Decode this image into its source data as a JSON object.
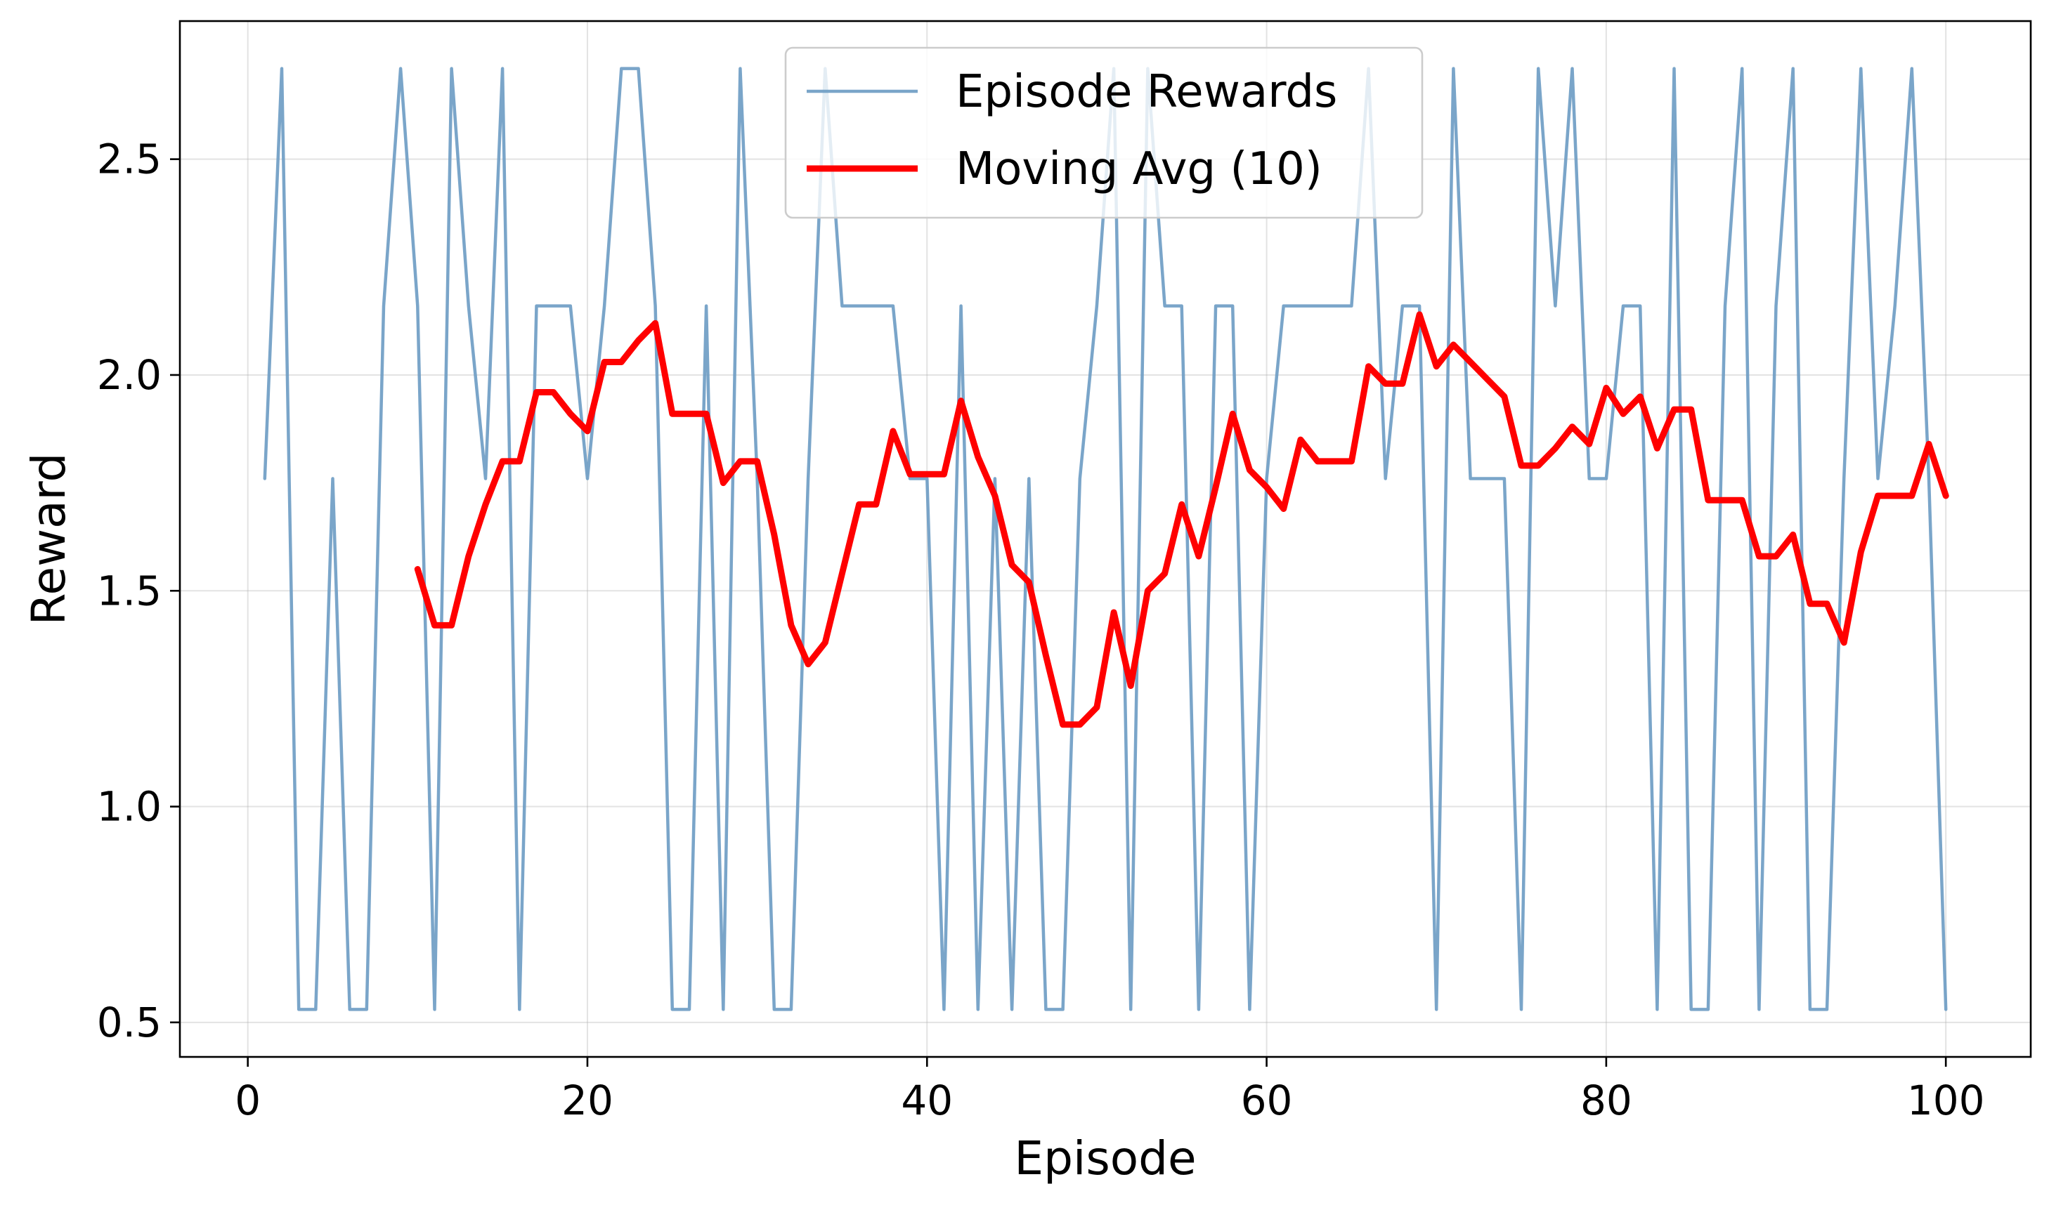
{
  "chart_data": {
    "type": "line",
    "xlabel": "Episode",
    "ylabel": "Reward",
    "xlim": [
      -4,
      105
    ],
    "ylim": [
      0.42,
      2.82
    ],
    "xticks": [
      0,
      20,
      40,
      60,
      80,
      100
    ],
    "yticks": [
      0.5,
      1.0,
      1.5,
      2.0,
      2.5
    ],
    "xtick_labels": [
      "0",
      "20",
      "40",
      "60",
      "80",
      "100"
    ],
    "ytick_labels": [
      "0.5",
      "1.0",
      "1.5",
      "2.0",
      "2.5"
    ],
    "grid": true,
    "legend_position": "top-center",
    "series": [
      {
        "name": "Episode Rewards",
        "color": "#6b9bc3",
        "x": [
          1,
          2,
          3,
          4,
          5,
          6,
          7,
          8,
          9,
          10,
          11,
          12,
          13,
          14,
          15,
          16,
          17,
          18,
          19,
          20,
          21,
          22,
          23,
          24,
          25,
          26,
          27,
          28,
          29,
          30,
          31,
          32,
          33,
          34,
          35,
          36,
          37,
          38,
          39,
          40,
          41,
          42,
          43,
          44,
          45,
          46,
          47,
          48,
          49,
          50,
          51,
          52,
          53,
          54,
          55,
          56,
          57,
          58,
          59,
          60,
          61,
          62,
          63,
          64,
          65,
          66,
          67,
          68,
          69,
          70,
          71,
          72,
          73,
          74,
          75,
          76,
          77,
          78,
          79,
          80,
          81,
          82,
          83,
          84,
          85,
          86,
          87,
          88,
          89,
          90,
          91,
          92,
          93,
          94,
          95,
          96,
          97,
          98,
          99,
          100
        ],
        "y": [
          1.76,
          2.71,
          0.53,
          0.53,
          1.76,
          0.53,
          0.53,
          2.16,
          2.71,
          2.16,
          0.53,
          2.71,
          2.16,
          1.76,
          2.71,
          0.53,
          2.16,
          2.16,
          2.16,
          1.76,
          2.16,
          2.71,
          2.71,
          2.16,
          0.53,
          0.53,
          2.16,
          0.53,
          2.71,
          1.76,
          0.53,
          0.53,
          1.76,
          2.71,
          2.16,
          2.16,
          2.16,
          2.16,
          1.76,
          1.76,
          0.53,
          2.16,
          0.53,
          1.76,
          0.53,
          1.76,
          0.53,
          0.53,
          1.76,
          2.16,
          2.71,
          0.53,
          2.71,
          2.16,
          2.16,
          0.53,
          2.16,
          2.16,
          0.53,
          1.76,
          2.16,
          2.16,
          2.16,
          2.16,
          2.16,
          2.71,
          1.76,
          2.16,
          2.16,
          0.53,
          2.71,
          1.76,
          1.76,
          1.76,
          0.53,
          2.71,
          2.16,
          2.71,
          1.76,
          1.76,
          2.16,
          2.16,
          0.53,
          2.71,
          0.53,
          0.53,
          2.16,
          2.71,
          0.53,
          2.16,
          2.71,
          0.53,
          0.53,
          1.76,
          2.71,
          1.76,
          2.16,
          2.71,
          1.76,
          0.53
        ]
      },
      {
        "name": "Moving Avg (10)",
        "color": "#ff0000",
        "x": [
          10,
          11,
          12,
          13,
          14,
          15,
          16,
          17,
          18,
          19,
          20,
          21,
          22,
          23,
          24,
          25,
          26,
          27,
          28,
          29,
          30,
          31,
          32,
          33,
          34,
          35,
          36,
          37,
          38,
          39,
          40,
          41,
          42,
          43,
          44,
          45,
          46,
          47,
          48,
          49,
          50,
          51,
          52,
          53,
          54,
          55,
          56,
          57,
          58,
          59,
          60,
          61,
          62,
          63,
          64,
          65,
          66,
          67,
          68,
          69,
          70,
          71,
          72,
          73,
          74,
          75,
          76,
          77,
          78,
          79,
          80,
          81,
          82,
          83,
          84,
          85,
          86,
          87,
          88,
          89,
          90,
          91,
          92,
          93,
          94,
          95,
          96,
          97,
          98,
          99,
          100
        ],
        "y": [
          1.55,
          1.42,
          1.42,
          1.58,
          1.7,
          1.8,
          1.8,
          1.96,
          1.96,
          1.91,
          1.87,
          2.03,
          2.03,
          2.08,
          2.12,
          1.91,
          1.91,
          1.91,
          1.75,
          1.8,
          1.8,
          1.63,
          1.42,
          1.33,
          1.38,
          1.54,
          1.7,
          1.7,
          1.87,
          1.77,
          1.77,
          1.77,
          1.94,
          1.81,
          1.72,
          1.56,
          1.52,
          1.35,
          1.19,
          1.19,
          1.23,
          1.45,
          1.28,
          1.5,
          1.54,
          1.7,
          1.58,
          1.74,
          1.91,
          1.78,
          1.74,
          1.69,
          1.85,
          1.8,
          1.8,
          1.8,
          2.02,
          1.98,
          1.98,
          2.14,
          2.02,
          2.07,
          2.03,
          1.99,
          1.95,
          1.79,
          1.79,
          1.83,
          1.88,
          1.84,
          1.97,
          1.91,
          1.95,
          1.83,
          1.92,
          1.92,
          1.71,
          1.71,
          1.71,
          1.58,
          1.58,
          1.63,
          1.47,
          1.47,
          1.38,
          1.59,
          1.72,
          1.72,
          1.72,
          1.84,
          1.72
        ]
      }
    ]
  }
}
